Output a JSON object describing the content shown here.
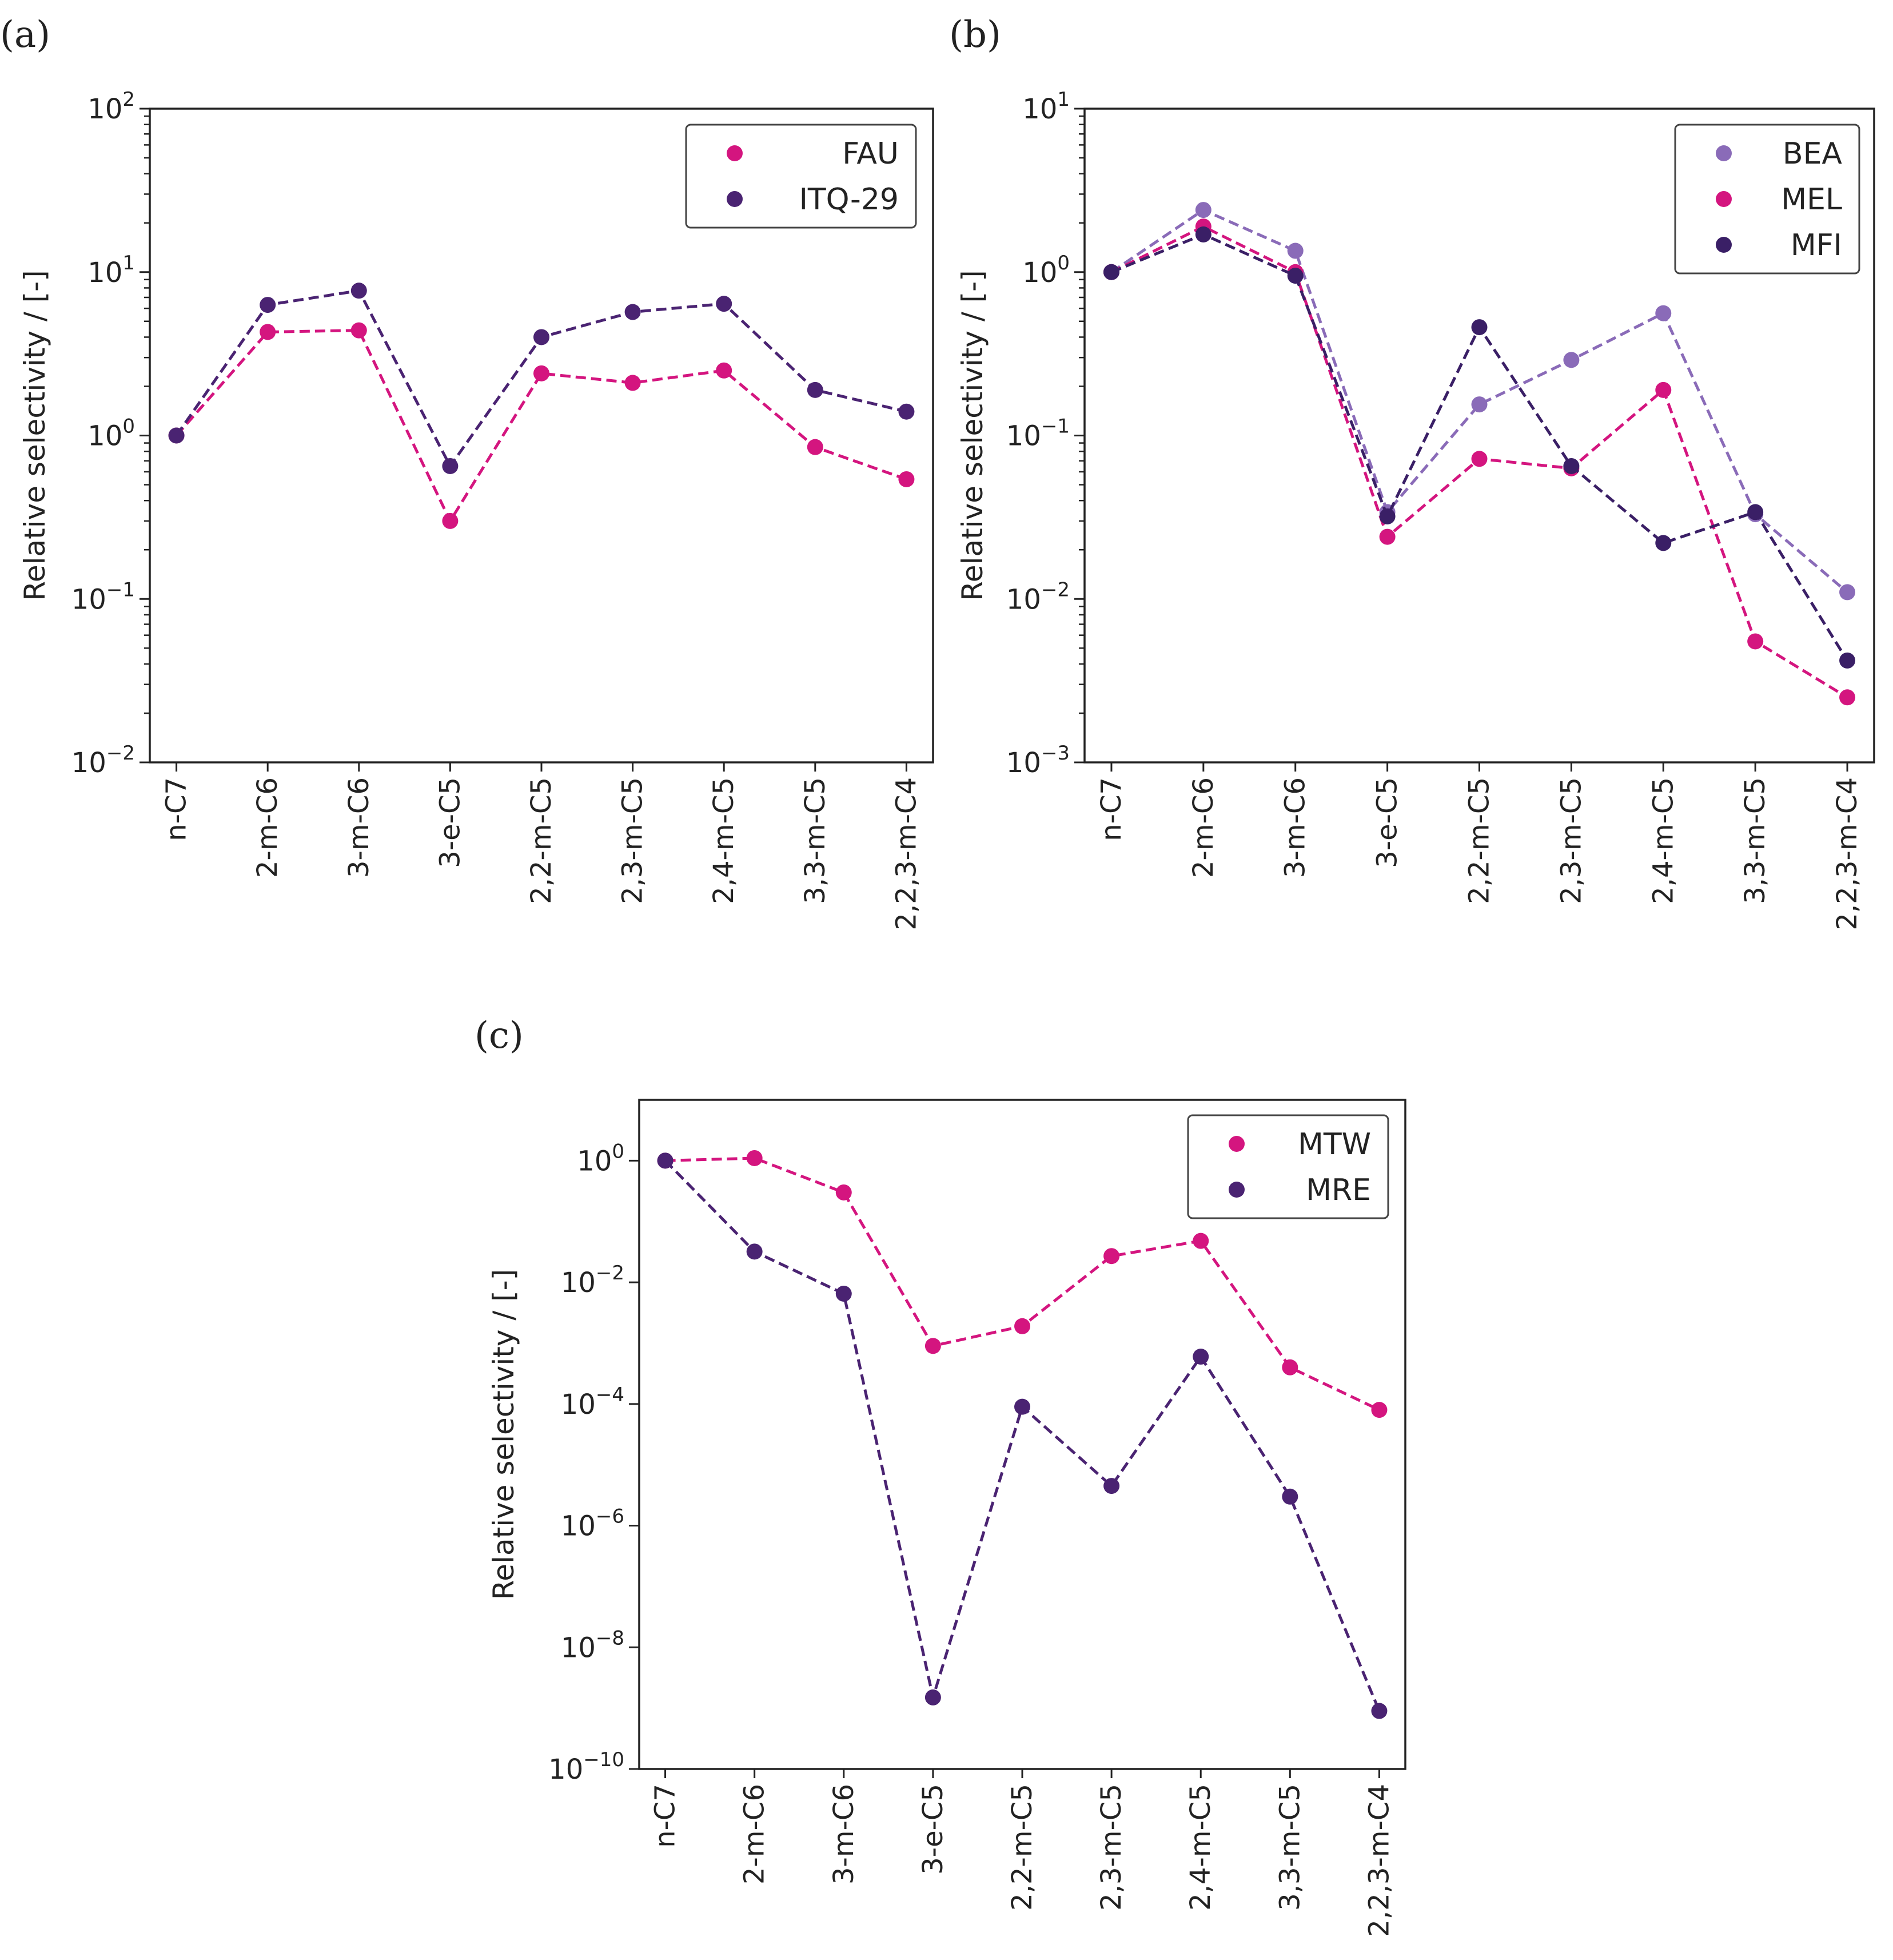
{
  "chart_data": [
    {
      "type": "line",
      "panel_label": "(a)",
      "ylabel": "Relative selectivity / [-]",
      "yscale": "log",
      "ylim_exp": [
        -2,
        2
      ],
      "ytick_labels": [
        {
          "exp": 2,
          "base": "10",
          "sup": "2"
        },
        {
          "exp": 1,
          "base": "10",
          "sup": "1"
        },
        {
          "exp": 0,
          "base": "10",
          "sup": "0"
        },
        {
          "exp": -1,
          "base": "10",
          "sup": "−1"
        },
        {
          "exp": -2,
          "base": "10",
          "sup": "−2"
        }
      ],
      "categories": [
        "n-C7",
        "2-m-C6",
        "3-m-C6",
        "3-e-C5",
        "2,2-m-C5",
        "2,3-m-C5",
        "2,4-m-C5",
        "3,3-m-C5",
        "2,2,3-m-C4"
      ],
      "legend_position": "top-right",
      "series": [
        {
          "name": "FAU",
          "color": "#d4157f",
          "values": [
            1.0,
            4.3,
            4.4,
            0.3,
            2.4,
            2.1,
            2.5,
            0.85,
            0.54
          ]
        },
        {
          "name": "ITQ-29",
          "color": "#4a2372",
          "values": [
            1.0,
            6.3,
            7.7,
            0.65,
            4.0,
            5.7,
            6.4,
            1.9,
            1.4
          ]
        }
      ]
    },
    {
      "type": "line",
      "panel_label": "(b)",
      "ylabel": "Relative selectivity / [-]",
      "yscale": "log",
      "ylim_exp": [
        -3,
        1
      ],
      "ytick_labels": [
        {
          "exp": 1,
          "base": "10",
          "sup": "1"
        },
        {
          "exp": 0,
          "base": "10",
          "sup": "0"
        },
        {
          "exp": -1,
          "base": "10",
          "sup": "−1"
        },
        {
          "exp": -2,
          "base": "10",
          "sup": "−2"
        },
        {
          "exp": -3,
          "base": "10",
          "sup": "−3"
        }
      ],
      "categories": [
        "n-C7",
        "2-m-C6",
        "3-m-C6",
        "3-e-C5",
        "2,2-m-C5",
        "2,3-m-C5",
        "2,4-m-C5",
        "3,3-m-C5",
        "2,2,3-m-C4"
      ],
      "legend_position": "top-right",
      "series": [
        {
          "name": "BEA",
          "color": "#8a6bb8",
          "values": [
            1.0,
            2.4,
            1.35,
            0.034,
            0.155,
            0.29,
            0.56,
            0.033,
            0.011
          ]
        },
        {
          "name": "MEL",
          "color": "#d4157f",
          "values": [
            1.0,
            1.9,
            1.0,
            0.024,
            0.072,
            0.063,
            0.19,
            0.0055,
            0.0025
          ]
        },
        {
          "name": "MFI",
          "color": "#3a1f66",
          "values": [
            1.0,
            1.7,
            0.95,
            0.032,
            0.46,
            0.065,
            0.022,
            0.034,
            0.0042
          ]
        }
      ]
    },
    {
      "type": "line",
      "panel_label": "(c)",
      "ylabel": "Relative selectivity / [-]",
      "yscale": "log",
      "ylim_exp": [
        -10,
        1
      ],
      "ytick_labels": [
        {
          "exp": 0,
          "base": "10",
          "sup": "0"
        },
        {
          "exp": -2,
          "base": "10",
          "sup": "−2"
        },
        {
          "exp": -4,
          "base": "10",
          "sup": "−4"
        },
        {
          "exp": -6,
          "base": "10",
          "sup": "−6"
        },
        {
          "exp": -8,
          "base": "10",
          "sup": "−8"
        },
        {
          "exp": -10,
          "base": "10",
          "sup": "−10"
        }
      ],
      "categories": [
        "n-C7",
        "2-m-C6",
        "3-m-C6",
        "3-e-C5",
        "2,2-m-C5",
        "2,3-m-C5",
        "2,4-m-C5",
        "3,3-m-C5",
        "2,2,3-m-C4"
      ],
      "legend_position": "top-right",
      "series": [
        {
          "name": "MTW",
          "color": "#d4157f",
          "values": [
            1.0,
            1.1,
            0.3,
            0.0009,
            0.0019,
            0.027,
            0.048,
            0.0004,
            8e-05
          ]
        },
        {
          "name": "MRE",
          "color": "#4a2372",
          "values": [
            1.0,
            0.032,
            0.0065,
            1.5e-09,
            9e-05,
            4.5e-06,
            0.0006,
            3e-06,
            9e-10
          ]
        }
      ]
    }
  ]
}
